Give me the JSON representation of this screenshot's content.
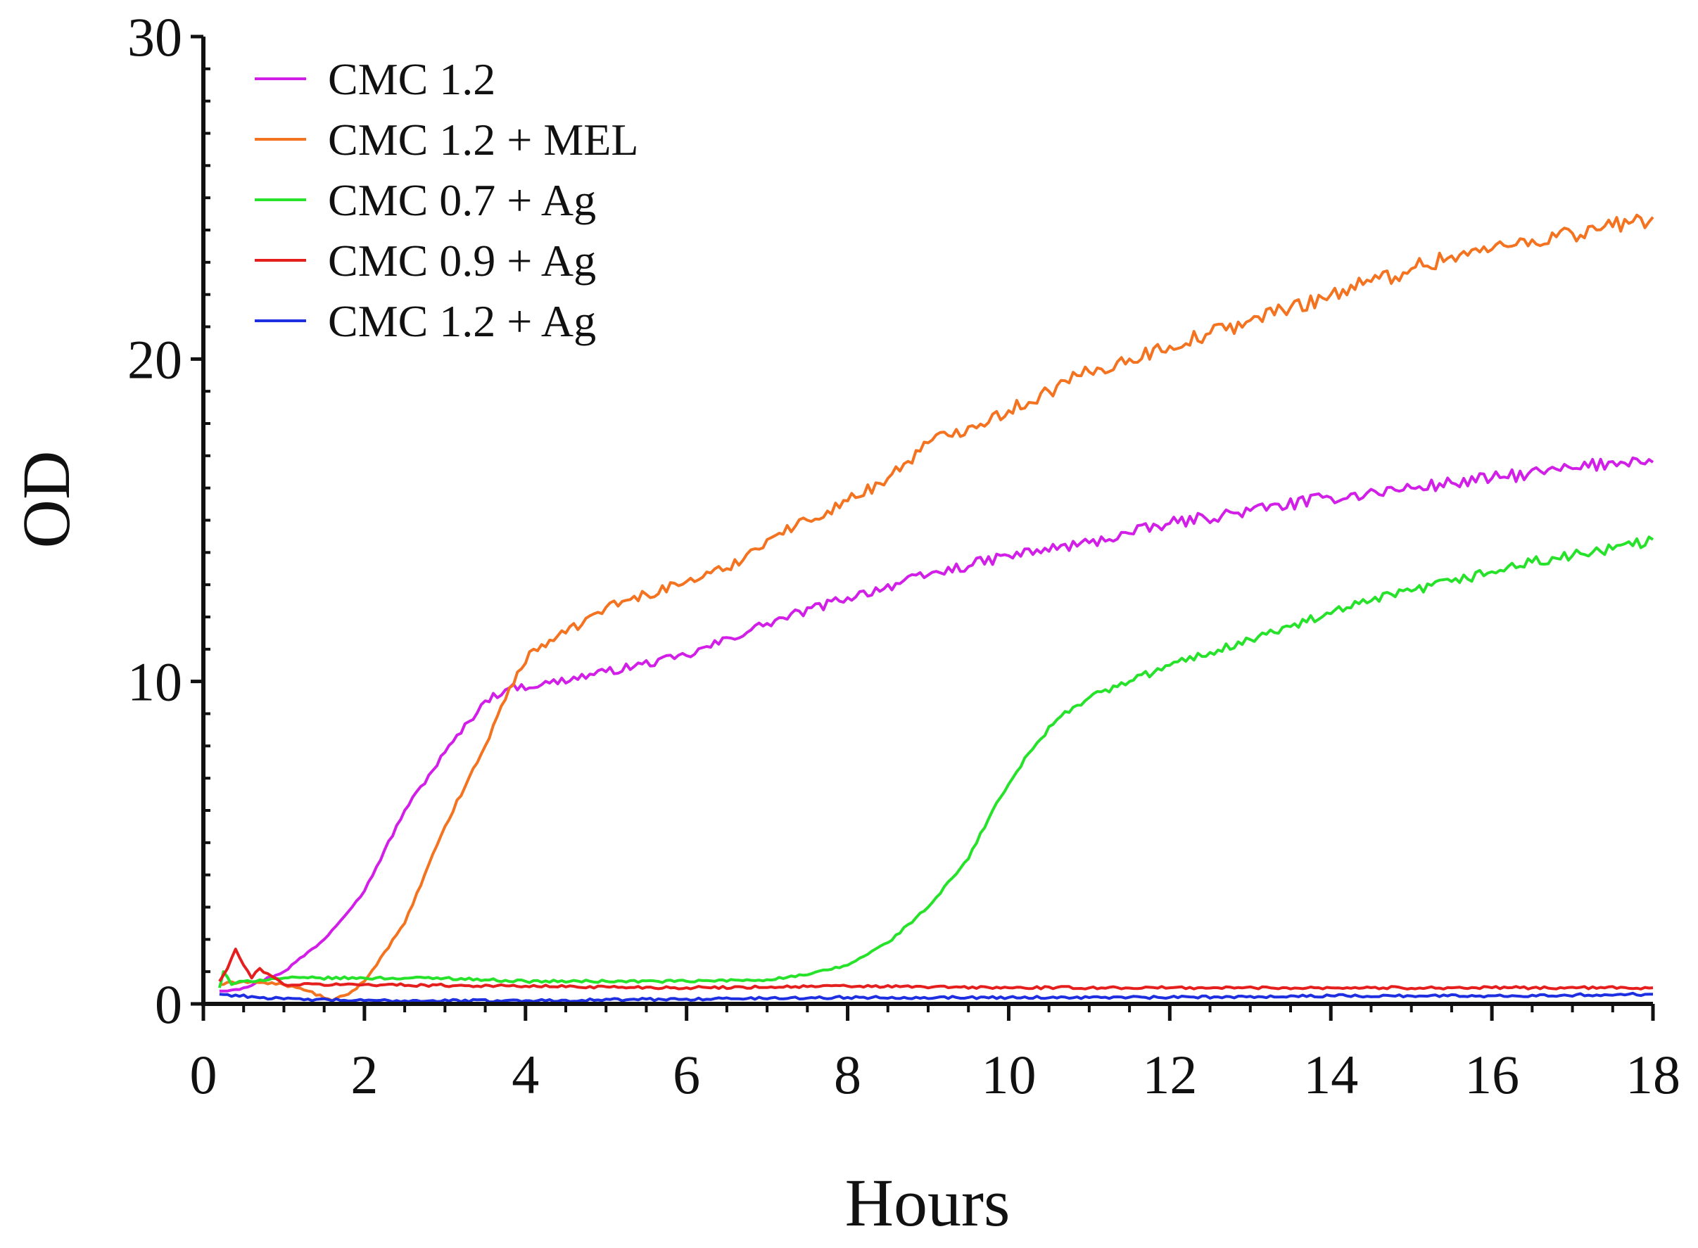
{
  "chart_data": {
    "type": "line",
    "title": "",
    "xlabel": "Hours",
    "ylabel": "OD",
    "xlim": [
      0,
      18
    ],
    "ylim": [
      0,
      30
    ],
    "x_ticks": [
      0,
      2,
      4,
      6,
      8,
      10,
      12,
      14,
      16,
      18
    ],
    "x_tick_labels": [
      "0",
      "2",
      "4",
      "6",
      "8",
      "10",
      "12",
      "14",
      "16",
      "18"
    ],
    "y_ticks": [
      0,
      10,
      20,
      30
    ],
    "y_tick_labels": [
      "0",
      "10",
      "20",
      "30"
    ],
    "grid": false,
    "legend_position": "top-left",
    "series": [
      {
        "name": "CMC 1.2",
        "color": "#d21fe8",
        "x": [
          0.2,
          0.5,
          1.0,
          1.5,
          2.0,
          2.5,
          3.0,
          3.5,
          3.8,
          4.2,
          5.0,
          6.0,
          7.0,
          8.0,
          9.0,
          10.0,
          11.0,
          12.0,
          13.0,
          14.0,
          15.0,
          16.0,
          17.0,
          17.8,
          18.0
        ],
        "values": [
          0.4,
          0.5,
          1.0,
          2.0,
          3.5,
          6.0,
          7.8,
          9.4,
          9.8,
          9.9,
          10.3,
          10.8,
          11.8,
          12.6,
          13.3,
          13.9,
          14.3,
          14.9,
          15.3,
          15.7,
          16.0,
          16.3,
          16.6,
          16.9,
          16.8
        ]
      },
      {
        "name": "CMC 1.2 + MEL",
        "color": "#f47320",
        "x": [
          0.2,
          0.5,
          1.0,
          1.3,
          1.6,
          1.8,
          2.0,
          2.5,
          3.0,
          3.5,
          3.8,
          4.1,
          4.5,
          5.0,
          5.5,
          6.0,
          6.5,
          7.0,
          7.5,
          8.0,
          8.5,
          9.0,
          9.5,
          10.0,
          10.5,
          11.0,
          11.5,
          12.0,
          12.5,
          13.0,
          13.5,
          14.0,
          14.5,
          15.0,
          15.5,
          16.0,
          16.5,
          17.0,
          17.5,
          18.0
        ],
        "values": [
          0.6,
          0.7,
          0.6,
          0.4,
          0.1,
          0.3,
          0.7,
          2.5,
          5.5,
          8.0,
          9.8,
          11.0,
          11.5,
          12.3,
          12.7,
          13.1,
          13.5,
          14.4,
          15.0,
          15.6,
          16.3,
          17.4,
          17.9,
          18.4,
          19.0,
          19.6,
          20.0,
          20.4,
          20.8,
          21.2,
          21.6,
          22.0,
          22.4,
          22.8,
          23.2,
          23.4,
          23.7,
          23.9,
          24.1,
          24.4
        ]
      },
      {
        "name": "CMC 0.7 + Ag",
        "color": "#27e22a",
        "x": [
          0.2,
          0.25,
          0.35,
          0.5,
          1.0,
          2.0,
          3.0,
          4.0,
          5.0,
          6.0,
          7.0,
          7.5,
          8.0,
          8.5,
          9.0,
          9.5,
          9.8,
          10.1,
          10.5,
          10.8,
          11.0,
          11.5,
          12.0,
          12.5,
          13.0,
          13.5,
          14.0,
          14.5,
          15.0,
          15.5,
          16.0,
          16.5,
          17.0,
          17.5,
          18.0
        ],
        "values": [
          0.5,
          1.0,
          0.6,
          0.7,
          0.8,
          0.8,
          0.8,
          0.7,
          0.7,
          0.7,
          0.75,
          0.9,
          1.2,
          1.9,
          3.0,
          4.5,
          6.0,
          7.2,
          8.6,
          9.2,
          9.5,
          10.0,
          10.5,
          10.9,
          11.3,
          11.7,
          12.1,
          12.5,
          12.8,
          13.1,
          13.4,
          13.7,
          13.9,
          14.1,
          14.4
        ]
      },
      {
        "name": "CMC 0.9 + Ag",
        "color": "#e51e1e",
        "x": [
          0.2,
          0.3,
          0.4,
          0.5,
          0.6,
          0.7,
          1.0,
          2.0,
          4.0,
          6.0,
          8.0,
          10.0,
          12.0,
          14.0,
          16.0,
          18.0
        ],
        "values": [
          0.7,
          1.1,
          1.7,
          1.2,
          0.8,
          1.1,
          0.6,
          0.6,
          0.55,
          0.5,
          0.55,
          0.5,
          0.5,
          0.5,
          0.5,
          0.5
        ]
      },
      {
        "name": "CMC 1.2 + Ag",
        "color": "#1d2fe0",
        "x": [
          0.2,
          1.0,
          2.0,
          4.0,
          6.0,
          8.0,
          10.0,
          12.0,
          14.0,
          16.0,
          18.0
        ],
        "values": [
          0.3,
          0.15,
          0.1,
          0.1,
          0.15,
          0.2,
          0.2,
          0.2,
          0.25,
          0.25,
          0.3
        ]
      }
    ]
  }
}
